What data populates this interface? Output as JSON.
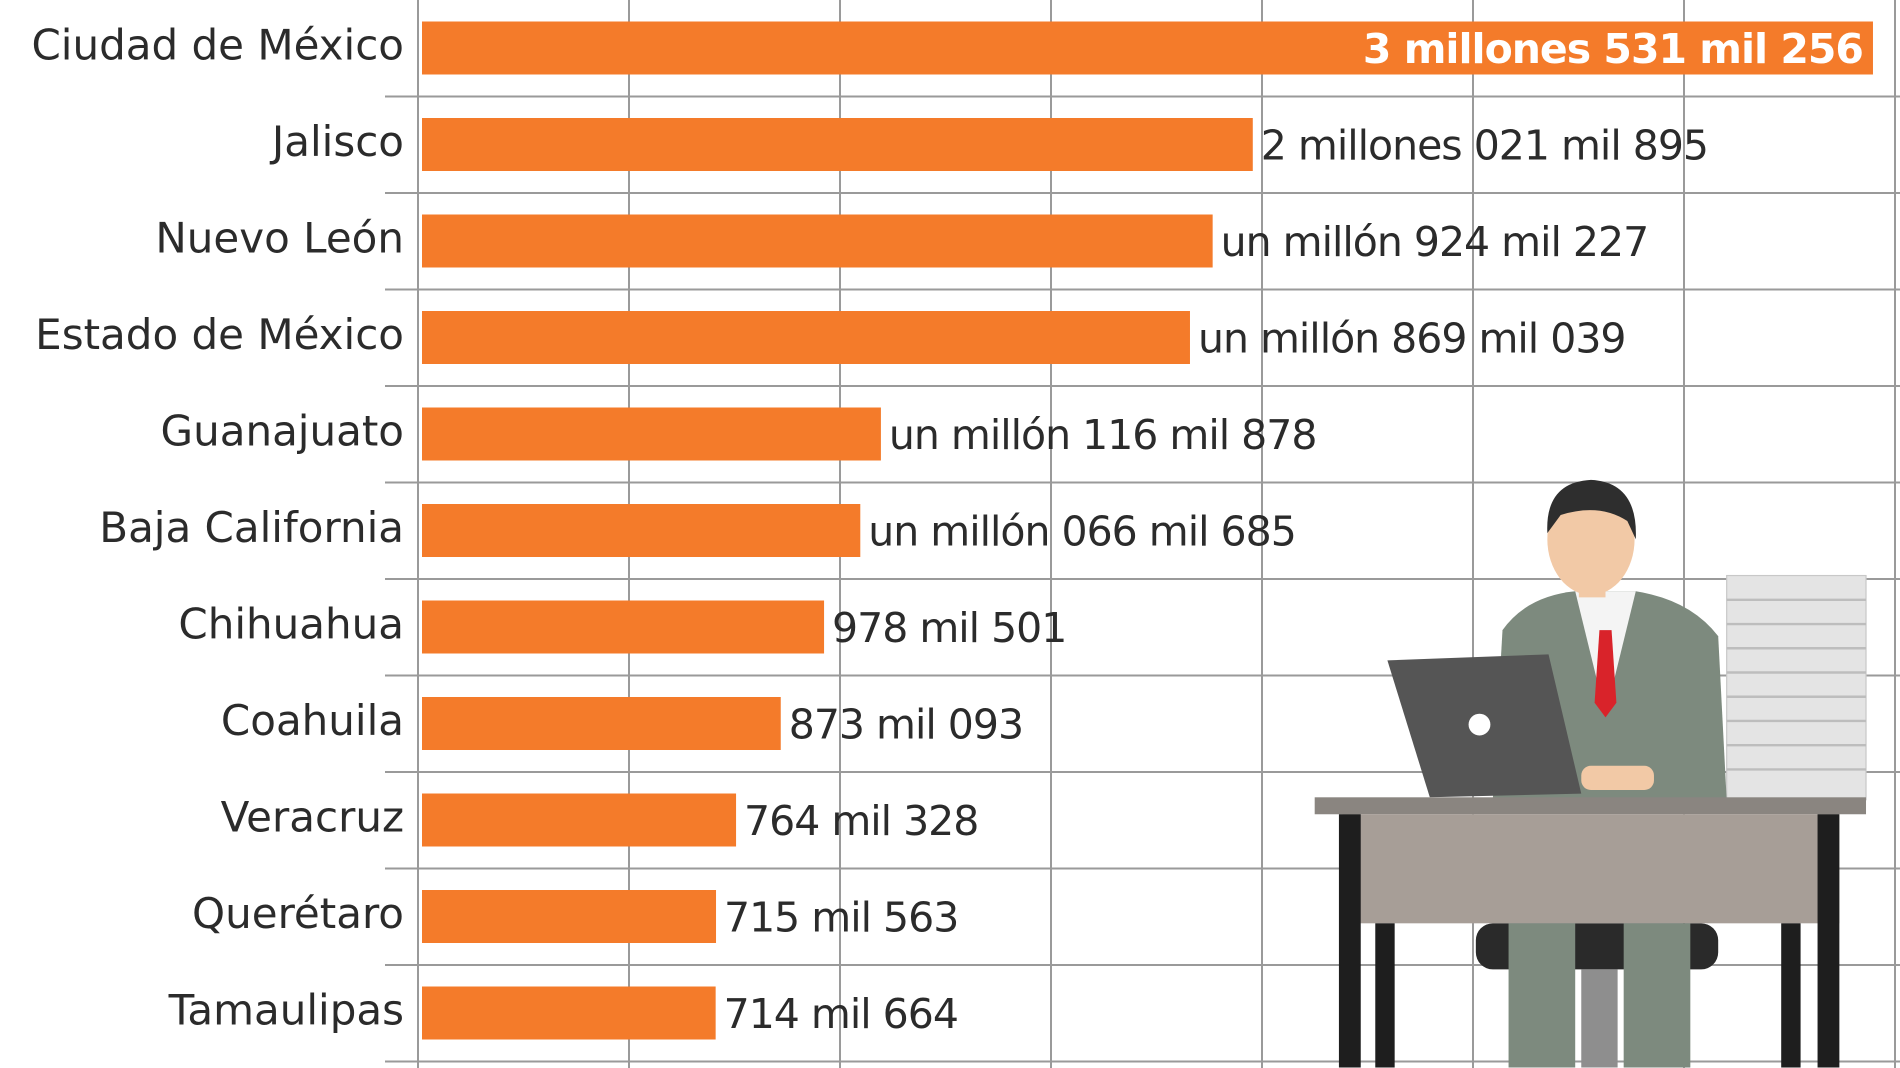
{
  "chart_data": {
    "type": "bar",
    "orientation": "horizontal",
    "categories": [
      "Ciudad de México",
      "Jalisco",
      "Nuevo León",
      "Estado de México",
      "Guanajuato",
      "Baja California",
      "Chihuahua",
      "Coahuila",
      "Veracruz",
      "Querétaro",
      "Tamaulipas"
    ],
    "values": [
      3531256,
      2021895,
      1924227,
      1869039,
      1116878,
      1066685,
      978501,
      873093,
      764328,
      715563,
      714664
    ],
    "value_labels": [
      "3 millones 531 mil 256",
      "2 millones 021 mil 895",
      "un millón 924 mil 227",
      "un millón 869 mil 039",
      "un millón 116 mil 878",
      "un millón 066 mil 685",
      "978 mil 501",
      "873 mil 093",
      "764 mil 328",
      "715 mil 563",
      "714 mil 664"
    ],
    "color": "#f47b2a",
    "xlim": [
      0,
      3580000
    ]
  }
}
